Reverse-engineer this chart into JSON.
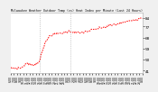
{
  "title": "Milwaukee Weather Outdoor Temp (vs) Heat Index per Minute (Last 24 Hours)",
  "background_color": "#f0f0f0",
  "plot_bg_color": "#ffffff",
  "line_color": "#ff0000",
  "ylim": [
    39,
    88
  ],
  "yticks": [
    41,
    50,
    59,
    68,
    77,
    84
  ],
  "vline_positions": [
    0.22,
    0.45
  ],
  "num_points": 144,
  "x_tick_labels": [
    "6:0",
    "7:0",
    "8:0",
    "9:0",
    "10:",
    "11:",
    "12:",
    "13:",
    "14:",
    "15:",
    "16:",
    "17:",
    "18:",
    "19:",
    "20:",
    "21:",
    "22:",
    "23:",
    "0:0",
    "1:0",
    "2:0",
    "3:0",
    "4:0",
    "5:0",
    "6:0",
    "7:0",
    "8:0",
    "9:0",
    "10:",
    "11:",
    "12:",
    "13:",
    "14:",
    "15:",
    "16:",
    "17:",
    "18:",
    "19:",
    "20:",
    "21:",
    "22:",
    "23:",
    "24:"
  ]
}
